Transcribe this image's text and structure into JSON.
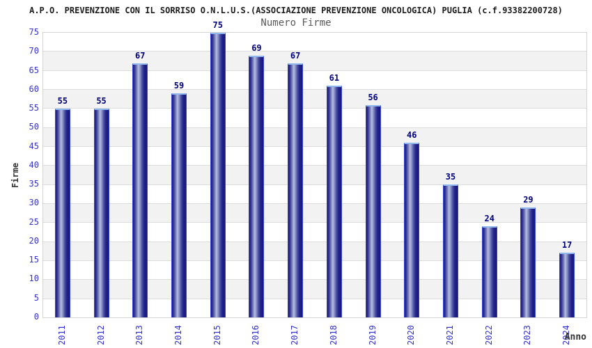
{
  "chart_data": {
    "type": "bar",
    "title": "A.P.O. PREVENZIONE CON IL SORRISO O.N.L.U.S.(ASSOCIAZIONE PREVENZIONE ONCOLOGICA) PUGLIA (c.f.93382200728)",
    "subtitle": "Numero Firme",
    "xlabel": "Anno",
    "ylabel": "Firme",
    "categories": [
      "2011",
      "2012",
      "2013",
      "2014",
      "2015",
      "2016",
      "2017",
      "2018",
      "2019",
      "2020",
      "2021",
      "2022",
      "2023",
      "2024"
    ],
    "values": [
      55,
      55,
      67,
      59,
      75,
      69,
      67,
      61,
      56,
      46,
      35,
      24,
      29,
      17
    ],
    "ylim": [
      0,
      75
    ],
    "y_tick_step": 5,
    "y_ticks": [
      0,
      5,
      10,
      15,
      20,
      25,
      30,
      35,
      40,
      45,
      50,
      55,
      60,
      65,
      70,
      75
    ],
    "grid": "horizontal-bands",
    "legend": "none",
    "colors": {
      "title": "#1c1c1c",
      "subtitle": "#585858",
      "tick_label": "#3333cc",
      "value_label": "#00007e",
      "axis_title": "#333333",
      "band_gray": "#f2f2f2",
      "band_white": "#ffffff",
      "grid_line": "#dcdcdc",
      "plot_border": "#d4d4d4",
      "bar_dark": "#1a1a7e",
      "bar_highlight": "#b7bde0",
      "bar_edge": "#3748d2",
      "bar_cap": "#92b9ee"
    }
  }
}
